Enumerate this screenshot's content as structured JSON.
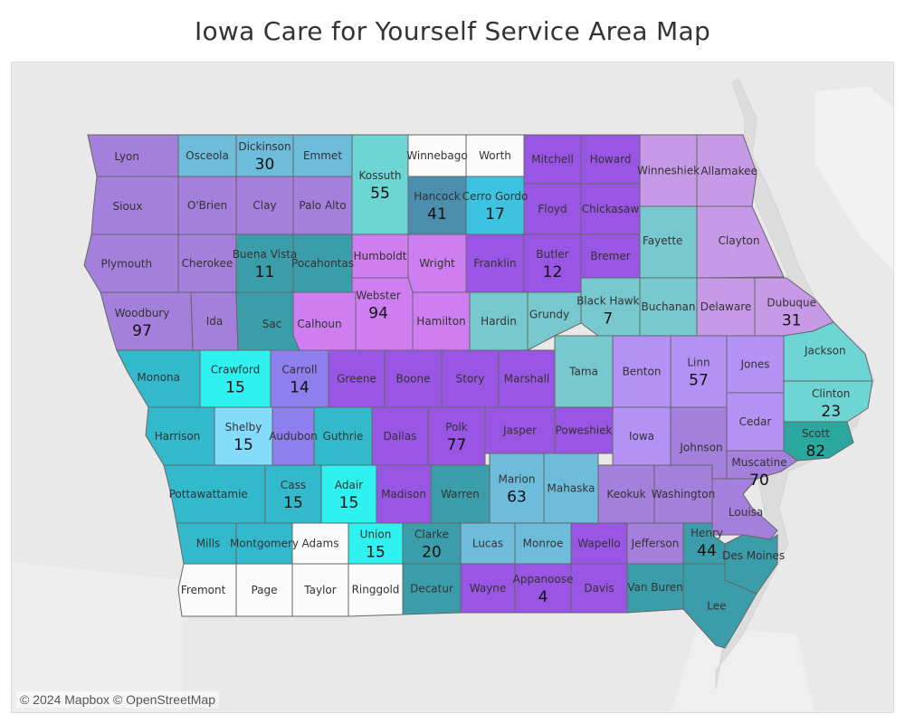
{
  "title": "Iowa Care for Yourself Service Area Map",
  "attribution": "© 2024 Mapbox © OpenStreetMap",
  "colors": {
    "background": "#e9e9e9",
    "border": "#666666",
    "none": "#fbfbfb",
    "purple": "#a47fdb",
    "lavender": "#c69ae6",
    "magenta": "#cf7ef2",
    "violet": "#9955e3",
    "periwinkle": "#b391f5",
    "slate": "#8f7fee",
    "teal": "#3c9daa",
    "sky": "#6dbcdb",
    "cyan": "#3cc3e1",
    "aqua": "#2ff1ef",
    "light_aqua": "#6dd6d4",
    "pale_teal": "#78c9cf",
    "turquoise": "#33b9cc",
    "steel": "#4c8ead",
    "light_sky": "#85dcfa",
    "dark_teal": "#2aa8a0"
  },
  "counties": [
    {
      "name": "Lyon",
      "color": "purple",
      "count": ""
    },
    {
      "name": "Osceola",
      "color": "sky",
      "count": ""
    },
    {
      "name": "Dickinson",
      "color": "sky",
      "count": "30"
    },
    {
      "name": "Emmet",
      "color": "sky",
      "count": ""
    },
    {
      "name": "Kossuth",
      "color": "light_aqua",
      "count": "55"
    },
    {
      "name": "Winnebago",
      "color": "none",
      "count": ""
    },
    {
      "name": "Worth",
      "color": "none",
      "count": ""
    },
    {
      "name": "Mitchell",
      "color": "violet",
      "count": ""
    },
    {
      "name": "Howard",
      "color": "violet",
      "count": ""
    },
    {
      "name": "Winneshiek",
      "color": "lavender",
      "count": ""
    },
    {
      "name": "Allamakee",
      "color": "lavender",
      "count": ""
    },
    {
      "name": "Sioux",
      "color": "purple",
      "count": ""
    },
    {
      "name": "O'Brien",
      "color": "purple",
      "count": ""
    },
    {
      "name": "Clay",
      "color": "purple",
      "count": ""
    },
    {
      "name": "Palo Alto",
      "color": "purple",
      "count": ""
    },
    {
      "name": "Hancock",
      "color": "steel",
      "count": "41"
    },
    {
      "name": "Cerro Gordo",
      "color": "cyan",
      "count": "17"
    },
    {
      "name": "Floyd",
      "color": "violet",
      "count": ""
    },
    {
      "name": "Chickasaw",
      "color": "violet",
      "count": ""
    },
    {
      "name": "Fayette",
      "color": "pale_teal",
      "count": ""
    },
    {
      "name": "Clayton",
      "color": "lavender",
      "count": ""
    },
    {
      "name": "Plymouth",
      "color": "purple",
      "count": ""
    },
    {
      "name": "Cherokee",
      "color": "purple",
      "count": ""
    },
    {
      "name": "Buena Vista",
      "color": "teal",
      "count": "11"
    },
    {
      "name": "Pocahontas",
      "color": "teal",
      "count": ""
    },
    {
      "name": "Humboldt",
      "color": "magenta",
      "count": ""
    },
    {
      "name": "Wright",
      "color": "magenta",
      "count": ""
    },
    {
      "name": "Franklin",
      "color": "violet",
      "count": ""
    },
    {
      "name": "Butler",
      "color": "violet",
      "count": "12"
    },
    {
      "name": "Bremer",
      "color": "violet",
      "count": ""
    },
    {
      "name": "Black Hawk",
      "color": "pale_teal",
      "count": "7"
    },
    {
      "name": "Buchanan",
      "color": "pale_teal",
      "count": ""
    },
    {
      "name": "Delaware",
      "color": "lavender",
      "count": ""
    },
    {
      "name": "Dubuque",
      "color": "lavender",
      "count": "31"
    },
    {
      "name": "Woodbury",
      "color": "purple",
      "count": "97"
    },
    {
      "name": "Ida",
      "color": "purple",
      "count": ""
    },
    {
      "name": "Sac",
      "color": "teal",
      "count": ""
    },
    {
      "name": "Calhoun",
      "color": "magenta",
      "count": ""
    },
    {
      "name": "Webster",
      "color": "magenta",
      "count": "94"
    },
    {
      "name": "Hamilton",
      "color": "magenta",
      "count": ""
    },
    {
      "name": "Hardin",
      "color": "pale_teal",
      "count": ""
    },
    {
      "name": "Grundy",
      "color": "pale_teal",
      "count": ""
    },
    {
      "name": "Tama",
      "color": "pale_teal",
      "count": ""
    },
    {
      "name": "Benton",
      "color": "periwinkle",
      "count": ""
    },
    {
      "name": "Linn",
      "color": "periwinkle",
      "count": "57"
    },
    {
      "name": "Jones",
      "color": "periwinkle",
      "count": ""
    },
    {
      "name": "Jackson",
      "color": "light_aqua",
      "count": ""
    },
    {
      "name": "Monona",
      "color": "turquoise",
      "count": ""
    },
    {
      "name": "Crawford",
      "color": "aqua",
      "count": "15"
    },
    {
      "name": "Carroll",
      "color": "slate",
      "count": "14"
    },
    {
      "name": "Greene",
      "color": "violet",
      "count": ""
    },
    {
      "name": "Boone",
      "color": "violet",
      "count": ""
    },
    {
      "name": "Story",
      "color": "violet",
      "count": ""
    },
    {
      "name": "Marshall",
      "color": "violet",
      "count": ""
    },
    {
      "name": "Clinton",
      "color": "light_aqua",
      "count": "23"
    },
    {
      "name": "Harrison",
      "color": "turquoise",
      "count": ""
    },
    {
      "name": "Shelby",
      "color": "light_sky",
      "count": "15"
    },
    {
      "name": "Audubon",
      "color": "slate",
      "count": ""
    },
    {
      "name": "Guthrie",
      "color": "turquoise",
      "count": ""
    },
    {
      "name": "Dallas",
      "color": "violet",
      "count": ""
    },
    {
      "name": "Polk",
      "color": "violet",
      "count": "77"
    },
    {
      "name": "Jasper",
      "color": "violet",
      "count": ""
    },
    {
      "name": "Poweshiek",
      "color": "violet",
      "count": ""
    },
    {
      "name": "Iowa",
      "color": "periwinkle",
      "count": ""
    },
    {
      "name": "Johnson",
      "color": "purple",
      "count": ""
    },
    {
      "name": "Cedar",
      "color": "periwinkle",
      "count": ""
    },
    {
      "name": "Scott",
      "color": "dark_teal",
      "count": "82"
    },
    {
      "name": "Muscatine",
      "color": "purple",
      "count": "70"
    },
    {
      "name": "Pottawattamie",
      "color": "turquoise",
      "count": ""
    },
    {
      "name": "Cass",
      "color": "turquoise",
      "count": "15"
    },
    {
      "name": "Adair",
      "color": "aqua",
      "count": "15"
    },
    {
      "name": "Madison",
      "color": "violet",
      "count": ""
    },
    {
      "name": "Warren",
      "color": "teal",
      "count": ""
    },
    {
      "name": "Marion",
      "color": "sky",
      "count": "63"
    },
    {
      "name": "Mahaska",
      "color": "sky",
      "count": ""
    },
    {
      "name": "Keokuk",
      "color": "purple",
      "count": ""
    },
    {
      "name": "Washington",
      "color": "purple",
      "count": ""
    },
    {
      "name": "Louisa",
      "color": "purple",
      "count": ""
    },
    {
      "name": "Mills",
      "color": "turquoise",
      "count": ""
    },
    {
      "name": "Montgomery",
      "color": "turquoise",
      "count": ""
    },
    {
      "name": "Adams",
      "color": "none",
      "count": ""
    },
    {
      "name": "Union",
      "color": "aqua",
      "count": "15"
    },
    {
      "name": "Clarke",
      "color": "teal",
      "count": "20"
    },
    {
      "name": "Lucas",
      "color": "sky",
      "count": ""
    },
    {
      "name": "Monroe",
      "color": "sky",
      "count": ""
    },
    {
      "name": "Wapello",
      "color": "violet",
      "count": ""
    },
    {
      "name": "Jefferson",
      "color": "purple",
      "count": ""
    },
    {
      "name": "Henry",
      "color": "teal",
      "count": "44"
    },
    {
      "name": "Des Moines",
      "color": "teal",
      "count": ""
    },
    {
      "name": "Fremont",
      "color": "none",
      "count": ""
    },
    {
      "name": "Page",
      "color": "none",
      "count": ""
    },
    {
      "name": "Taylor",
      "color": "none",
      "count": ""
    },
    {
      "name": "Ringgold",
      "color": "none",
      "count": ""
    },
    {
      "name": "Decatur",
      "color": "teal",
      "count": ""
    },
    {
      "name": "Wayne",
      "color": "violet",
      "count": ""
    },
    {
      "name": "Appanoose",
      "color": "violet",
      "count": "4"
    },
    {
      "name": "Davis",
      "color": "violet",
      "count": ""
    },
    {
      "name": "Van Buren",
      "color": "teal",
      "count": ""
    },
    {
      "name": "Lee",
      "color": "teal",
      "count": ""
    }
  ]
}
